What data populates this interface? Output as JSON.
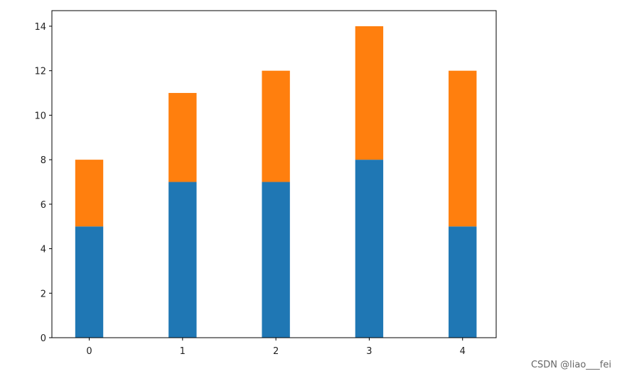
{
  "chart_data": {
    "type": "stacked_bar",
    "x": [
      0,
      1,
      2,
      3,
      4
    ],
    "series": [
      {
        "color": "#1f77b4",
        "values": [
          5,
          7,
          7,
          8,
          5
        ]
      },
      {
        "color": "#ff7f0e",
        "values": [
          3,
          4,
          5,
          6,
          7
        ]
      }
    ],
    "xlim": [
      -0.4,
      4.36
    ],
    "xticks": [
      0,
      1,
      2,
      3,
      4
    ],
    "ylim": [
      0,
      14.7
    ],
    "yticks": [
      0,
      2,
      4,
      6,
      8,
      10,
      12,
      14
    ],
    "grid": false
  },
  "watermark": "CSDN @liao___fei"
}
